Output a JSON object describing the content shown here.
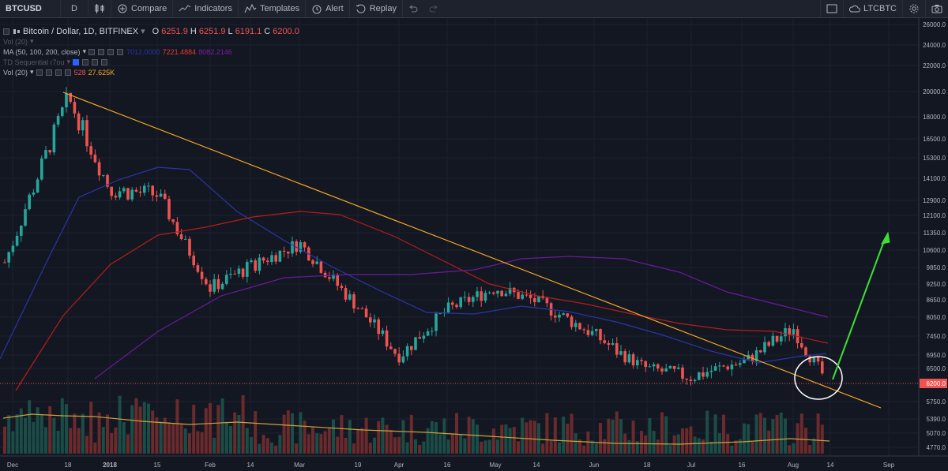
{
  "toolbar": {
    "symbol": "BTCUSD",
    "interval": "D",
    "compare": "Compare",
    "indicators": "Indicators",
    "templates": "Templates",
    "alert": "Alert",
    "replay": "Replay",
    "compare_symbol": "LTCBTC"
  },
  "legend": {
    "title": "Bitcoin / Dollar, 1D, BITFINEX",
    "o_label": "O",
    "o": "6251.9",
    "h_label": "H",
    "h": "6251.9",
    "l_label": "L",
    "l": "6191.1",
    "c_label": "C",
    "c": "6200.0",
    "vol_label": "Vol (20)",
    "ma_label": "MA (50, 100, 200, close)",
    "ma_v1": "7221.4884",
    "ma_v2": "8082.2146",
    "ma_v0": "7012.0000",
    "td_label": "TD Sequential r7ou",
    "vol2_label": "Vol (20)",
    "vol2_v1": "528",
    "vol2_v2": "27.625K"
  },
  "price_axis": {
    "ticks": [
      "26000.0",
      "24000.0",
      "22000.0",
      "20000.0",
      "18000.0",
      "16500.0",
      "15300.0",
      "14100.0",
      "12900.0",
      "12100.0",
      "11350.0",
      "10600.0",
      "9850.0",
      "9250.0",
      "8650.0",
      "8050.0",
      "7450.0",
      "6950.0",
      "6500.0",
      "5750.0",
      "5390.0",
      "5070.0",
      "4770.0"
    ],
    "current_price": "6200.0"
  },
  "time_axis": {
    "labels": [
      "Dec",
      "18",
      "2018",
      "15",
      "Feb",
      "14",
      "Mar",
      "19",
      "Apr",
      "16",
      "May",
      "14",
      "Jun",
      "18",
      "Jul",
      "16",
      "Aug",
      "14",
      "Sep"
    ]
  },
  "colors": {
    "background": "#131722",
    "up": "#26a69a",
    "down": "#ef5350",
    "trendline": "#f5a623",
    "arrow": "#3ee034",
    "ma50": "#2a36a6",
    "ma100": "#b71c1c",
    "ma200": "#6a1b9a",
    "volume_ma": "#c9a33c"
  },
  "chart_data": {
    "type": "candlestick",
    "title": "Bitcoin / Dollar, 1D, BITFINEX",
    "y_scale": "log",
    "ylim": [
      4600,
      26500
    ],
    "x": [
      "Dec 1",
      "Dec 18",
      "Jan 1",
      "Jan 15",
      "Feb 1",
      "Feb 14",
      "Mar 1",
      "Mar 19",
      "Apr 1",
      "Apr 16",
      "May 1",
      "May 14",
      "Jun 1",
      "Jun 18",
      "Jul 1",
      "Jul 16",
      "Aug 1",
      "Aug 14"
    ],
    "close": [
      9900,
      19500,
      13500,
      13200,
      9100,
      9900,
      10900,
      8400,
      6900,
      8300,
      9100,
      8600,
      7500,
      6500,
      6300,
      6700,
      7700,
      6200
    ],
    "moving_averages": [
      {
        "name": "MA 50",
        "value": "7012.0000"
      },
      {
        "name": "MA 100",
        "value": "7221.4884"
      },
      {
        "name": "MA 200",
        "value": "8082.2146"
      }
    ],
    "annotations": [
      "descending trendline",
      "circle around current price",
      "green arrow up"
    ]
  }
}
